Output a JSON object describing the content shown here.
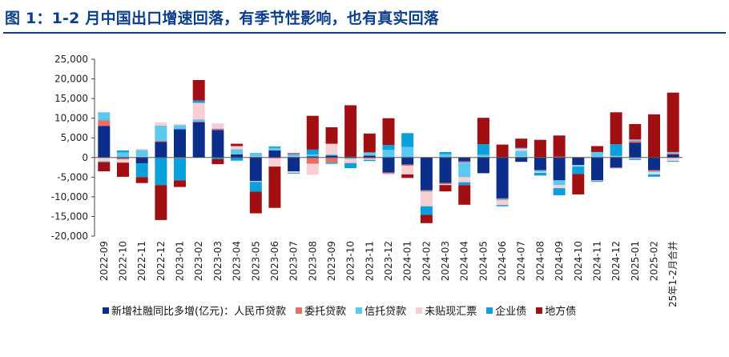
{
  "title": "图 1：1-2 月中国出口增速回落，有季节性影响，也有真实回落",
  "chart_data": {
    "type": "bar",
    "stacked": true,
    "title": "图 1：1-2 月中国出口增速回落，有季节性影响，也有真实回落",
    "xlabel": "",
    "ylabel": "",
    "ylim": [
      -20000,
      25000
    ],
    "yticks": [
      25000,
      20000,
      15000,
      10000,
      5000,
      0,
      -5000,
      -10000,
      -15000,
      -20000
    ],
    "ytick_labels": [
      "25,000",
      "20,000",
      "15,000",
      "10,000",
      "5,000",
      "0",
      "-5,000",
      "-10,000",
      "-15,000",
      "-20,000"
    ],
    "legend_position": "bottom",
    "grid": false,
    "categories": [
      "2022-09",
      "2022-10",
      "2022-11",
      "2022-12",
      "2023-01",
      "2023-02",
      "2023-03",
      "2023-04",
      "2023-05",
      "2023-06",
      "2023-07",
      "2023-08",
      "2023-09",
      "2023-10",
      "2023-11",
      "2023-12",
      "2024-01",
      "2024-02",
      "2024-03",
      "2024-04",
      "2024-05",
      "2024-06",
      "2024-07",
      "2024-08",
      "2024-09",
      "2024-10",
      "2024-11",
      "2024-12",
      "2025-01",
      "2025-02",
      "25年1-2月合并"
    ],
    "series": [
      {
        "name": "新增社融同比多增(亿元)：人民币贷款",
        "color": "#0b2e8a",
        "values": [
          8000,
          -200,
          -1500,
          4000,
          7200,
          9000,
          7000,
          800,
          -6000,
          1800,
          -3500,
          300,
          500,
          300,
          500,
          -3800,
          -1800,
          -8300,
          -6500,
          -1000,
          -4000,
          -10400,
          -1100,
          -3200,
          -5800,
          -1900,
          -5800,
          -2600,
          3800,
          -3200,
          800
        ]
      },
      {
        "name": "委托贷款",
        "color": "#e8706a",
        "values": [
          1500,
          -300,
          200,
          300,
          -200,
          200,
          300,
          100,
          200,
          -200,
          200,
          -1600,
          -1300,
          -200,
          -300,
          -300,
          -300,
          -200,
          -300,
          -300,
          200,
          -200,
          200,
          100,
          200,
          100,
          100,
          200,
          500,
          -200,
          300
        ]
      },
      {
        "name": "信托贷款",
        "color": "#5bc8f0",
        "values": [
          2000,
          1300,
          1700,
          3800,
          1000,
          500,
          100,
          1200,
          1000,
          700,
          700,
          500,
          300,
          -200,
          800,
          2000,
          2700,
          -200,
          800,
          -3700,
          500,
          -300,
          1500,
          -400,
          -1200,
          -300,
          1300,
          200,
          300,
          -300,
          300
        ]
      },
      {
        "name": "未贴现汇票",
        "color": "#f7cfd2",
        "values": [
          -1000,
          -800,
          300,
          800,
          300,
          4200,
          1300,
          800,
          -200,
          -2100,
          -400,
          -2800,
          2700,
          -1000,
          -300,
          -300,
          -2200,
          -3700,
          -200,
          -1300,
          -100,
          -1200,
          600,
          -300,
          -800,
          -100,
          -200,
          -300,
          -300,
          -600,
          -900
        ]
      },
      {
        "name": "企业债",
        "color": "#0aa0dc",
        "values": [
          -200,
          500,
          -3500,
          -7000,
          -5600,
          600,
          -400,
          -800,
          -2500,
          300,
          -200,
          1200,
          -300,
          -1300,
          -300,
          1200,
          3500,
          -2200,
          600,
          -700,
          2700,
          -300,
          200,
          -700,
          -1800,
          -1900,
          -200,
          3000,
          -300,
          -600,
          -200
        ]
      },
      {
        "name": "地方债",
        "color": "#a10f12",
        "values": [
          -2300,
          -3600,
          -1500,
          -8900,
          -1700,
          5200,
          -1300,
          600,
          -5500,
          -10500,
          200,
          8600,
          4200,
          13000,
          4800,
          6800,
          -900,
          -2100,
          -1600,
          -5000,
          6700,
          3300,
          2300,
          4400,
          5400,
          -5200,
          1500,
          8100,
          3900,
          11000,
          15100
        ]
      }
    ]
  }
}
